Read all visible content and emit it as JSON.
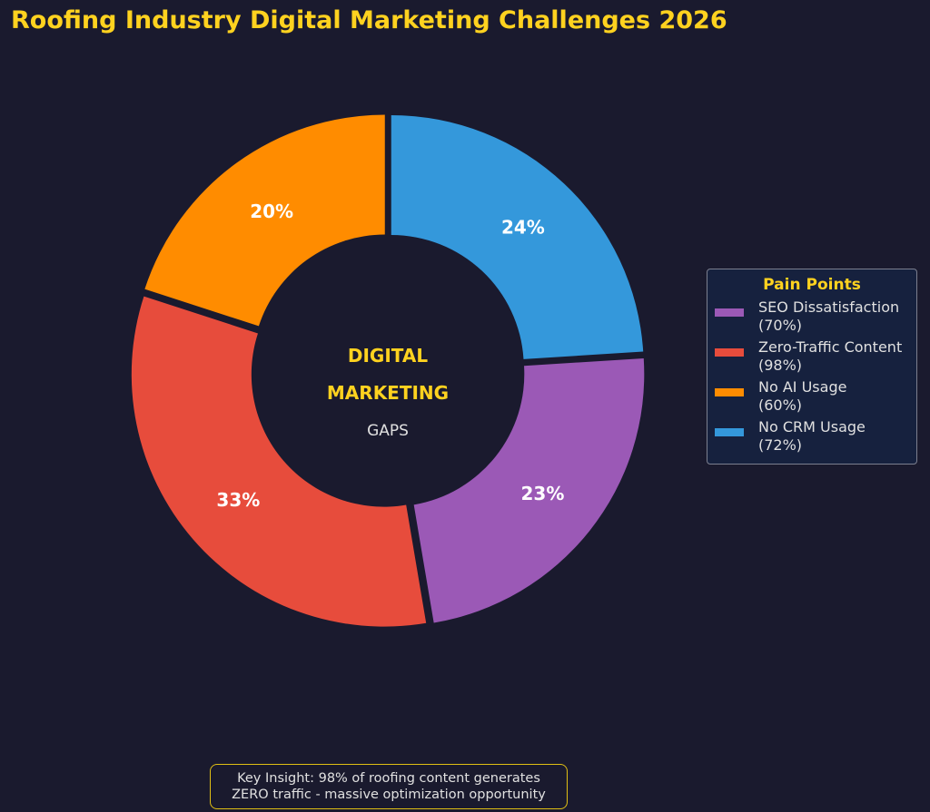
{
  "chart_data": {
    "type": "pie",
    "title": "Roofing Industry Digital Marketing Challenges 2026",
    "center_text": [
      "DIGITAL",
      "MARKETING",
      "GAPS"
    ],
    "categories": [
      "No CRM Usage",
      "SEO Dissatisfaction",
      "Zero-Traffic Content",
      "No AI Usage"
    ],
    "values": [
      72,
      70,
      98,
      60
    ],
    "percent_labels": [
      "24%",
      "23%",
      "33%",
      "20%"
    ],
    "colors": [
      "#3498db",
      "#9b59b6",
      "#e74c3c",
      "#ff8c00"
    ],
    "legend": {
      "title": "Pain Points",
      "placement": "right",
      "items": [
        {
          "name": "SEO Dissatisfaction",
          "value": "(70%)",
          "color": "#9b59b6"
        },
        {
          "name": "Zero-Traffic Content",
          "value": "(98%)",
          "color": "#e74c3c"
        },
        {
          "name": "No AI Usage",
          "value": "(60%)",
          "color": "#ff8c00"
        },
        {
          "name": "No CRM Usage",
          "value": "(72%)",
          "color": "#3498db"
        }
      ]
    },
    "annotation": {
      "line1": "Key Insight: 98% of roofing content generates",
      "line2": "ZERO traffic - massive optimization opportunity"
    }
  }
}
